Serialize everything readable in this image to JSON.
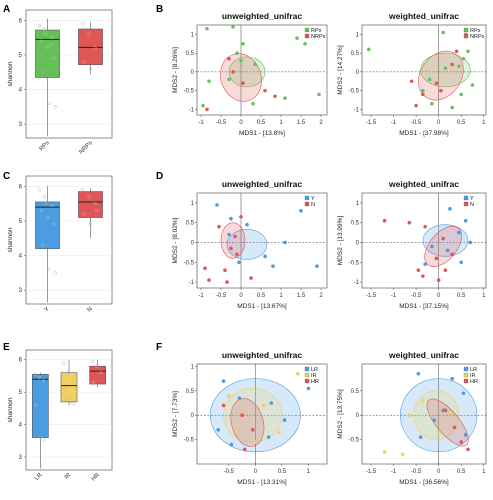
{
  "panel_labels": [
    "A",
    "B",
    "C",
    "D",
    "E",
    "F"
  ],
  "colors": {
    "green": "#66c05a",
    "red": "#e05555",
    "blue": "#4a9de0",
    "yellow": "#f0d060",
    "dark_red": "#d03a3a",
    "gray_point": "#bbbbbb"
  },
  "chart_data": [
    {
      "panel": "A",
      "type": "box",
      "ylabel": "shannon",
      "ylim": [
        2.6,
        6.3
      ],
      "yticks": [
        3,
        4,
        5,
        6
      ],
      "categories": [
        "RPs",
        "NRPs"
      ],
      "boxes": [
        {
          "min": 2.65,
          "q1": 4.35,
          "median": 5.45,
          "q3": 5.72,
          "max": 6.05,
          "color": "#66c05a",
          "points": [
            5.85,
            5.6,
            5.5,
            5.4,
            5.2,
            4.9,
            4.5,
            3.6,
            3.5,
            5.75,
            5.3
          ]
        },
        {
          "min": 4.45,
          "q1": 4.72,
          "median": 5.22,
          "q3": 5.75,
          "max": 5.95,
          "color": "#e05555",
          "points": [
            5.9,
            5.6,
            5.2,
            4.8,
            4.6
          ]
        }
      ]
    },
    {
      "panel": "B1",
      "type": "scatter",
      "title": "unweighted_unifrac",
      "xlabel": "MDS1 - [13.8%]",
      "ylabel": "MDS2 - [8.26%]",
      "xlim": [
        -1.1,
        2.15
      ],
      "ylim": [
        -1.15,
        1.25
      ],
      "xticks": [
        -1.0,
        -0.5,
        0.0,
        0.5,
        1.0,
        1.5,
        2.0
      ],
      "yticks": [
        -1.0,
        -0.5,
        0.0,
        0.5,
        1.0
      ],
      "legend": [
        "RPs",
        "NRPs"
      ],
      "legend_colors": [
        "#66c05a",
        "#e05555"
      ],
      "ellipses": [
        {
          "cx": 0.15,
          "cy": 0.0,
          "rx": 0.45,
          "ry": 0.4,
          "rot": 0,
          "color": "#66c05a"
        },
        {
          "cx": 0.0,
          "cy": -0.15,
          "rx": 0.5,
          "ry": 0.65,
          "rot": -20,
          "color": "#e05555"
        }
      ],
      "points": [
        {
          "x": -0.85,
          "y": 1.15,
          "g": 0
        },
        {
          "x": -0.2,
          "y": 1.2,
          "g": 0
        },
        {
          "x": 0.05,
          "y": 0.75,
          "g": 0
        },
        {
          "x": -0.1,
          "y": 0.5,
          "g": 0
        },
        {
          "x": 0.35,
          "y": 0.2,
          "g": 0
        },
        {
          "x": 0.0,
          "y": 0.3,
          "g": 0
        },
        {
          "x": 1.4,
          "y": 0.9,
          "g": 0
        },
        {
          "x": 1.6,
          "y": 0.75,
          "g": 0
        },
        {
          "x": -0.3,
          "y": -0.2,
          "g": 0
        },
        {
          "x": -0.8,
          "y": -0.25,
          "g": 0
        },
        {
          "x": 1.95,
          "y": -0.6,
          "g": 0
        },
        {
          "x": 1.1,
          "y": -0.7,
          "g": 0
        },
        {
          "x": 0.3,
          "y": -0.85,
          "g": 0
        },
        {
          "x": -0.95,
          "y": -0.9,
          "g": 0
        },
        {
          "x": -0.3,
          "y": 0.35,
          "g": 1
        },
        {
          "x": -0.2,
          "y": 0.0,
          "g": 1
        },
        {
          "x": 0.05,
          "y": -0.3,
          "g": 1
        },
        {
          "x": 0.6,
          "y": -0.5,
          "g": 1
        },
        {
          "x": 0.85,
          "y": -0.65,
          "g": 1
        },
        {
          "x": -0.85,
          "y": -1.0,
          "g": 1
        }
      ]
    },
    {
      "panel": "B2",
      "type": "scatter",
      "title": "weighted_unifrac",
      "xlabel": "MDS1 - [37.98%]",
      "ylabel": "MDS2 - [14.27%]",
      "xlim": [
        -1.7,
        1.05
      ],
      "ylim": [
        -1.15,
        1.25
      ],
      "xticks": [
        -1.5,
        -1.0,
        -0.5,
        0.0,
        0.5,
        1.0
      ],
      "yticks": [
        -1.0,
        -0.5,
        0.0,
        0.5,
        1.0
      ],
      "legend": [
        "RPs",
        "NRPs"
      ],
      "legend_colors": [
        "#66c05a",
        "#e05555"
      ],
      "ellipses": [
        {
          "cx": 0.15,
          "cy": 0.05,
          "rx": 0.55,
          "ry": 0.45,
          "rot": 0,
          "color": "#66c05a"
        },
        {
          "cx": 0.05,
          "cy": -0.1,
          "rx": 0.45,
          "ry": 0.7,
          "rot": 35,
          "color": "#e05555"
        }
      ],
      "points": [
        {
          "x": 0.1,
          "y": 1.05,
          "g": 0
        },
        {
          "x": 0.6,
          "y": 1.0,
          "g": 0
        },
        {
          "x": -1.55,
          "y": 0.6,
          "g": 0
        },
        {
          "x": 0.65,
          "y": 0.55,
          "g": 0
        },
        {
          "x": 0.55,
          "y": 0.35,
          "g": 0
        },
        {
          "x": 0.45,
          "y": 0.15,
          "g": 0
        },
        {
          "x": 0.15,
          "y": 0.1,
          "g": 0
        },
        {
          "x": -0.2,
          "y": -0.2,
          "g": 0
        },
        {
          "x": 0.75,
          "y": -0.35,
          "g": 0
        },
        {
          "x": -0.35,
          "y": -0.5,
          "g": 0
        },
        {
          "x": -0.15,
          "y": -0.85,
          "g": 0
        },
        {
          "x": 0.3,
          "y": -0.95,
          "g": 0
        },
        {
          "x": 0.5,
          "y": -0.6,
          "g": 0
        },
        {
          "x": 0.3,
          "y": 0.2,
          "g": 1
        },
        {
          "x": -0.05,
          "y": -0.3,
          "g": 1
        },
        {
          "x": -0.35,
          "y": -0.6,
          "g": 1
        },
        {
          "x": -0.5,
          "y": -0.9,
          "g": 1
        },
        {
          "x": 0.05,
          "y": -0.5,
          "g": 1
        },
        {
          "x": 0.4,
          "y": 0.55,
          "g": 1
        },
        {
          "x": -0.6,
          "y": -0.25,
          "g": 1
        }
      ]
    },
    {
      "panel": "C",
      "type": "box",
      "ylabel": "shannon",
      "ylim": [
        2.6,
        6.3
      ],
      "yticks": [
        3,
        4,
        5,
        6
      ],
      "categories": [
        "Y",
        "N"
      ],
      "boxes": [
        {
          "min": 2.65,
          "q1": 4.2,
          "median": 5.4,
          "q3": 5.55,
          "max": 6.0,
          "color": "#4a9de0",
          "points": [
            5.9,
            5.5,
            5.45,
            5.3,
            5.1,
            4.9,
            4.3,
            3.6,
            3.5,
            5.7
          ]
        },
        {
          "min": 4.5,
          "q1": 5.1,
          "median": 5.55,
          "q3": 5.85,
          "max": 5.95,
          "color": "#e05555",
          "points": [
            5.9,
            5.7,
            5.5,
            5.2,
            4.9,
            5.3
          ]
        }
      ]
    },
    {
      "panel": "D1",
      "type": "scatter",
      "title": "unweighted_unifrac",
      "xlabel": "MDS1 - [13.67%]",
      "ylabel": "MDS2 - [8.02%]",
      "xlim": [
        -1.1,
        2.15
      ],
      "ylim": [
        -1.15,
        1.25
      ],
      "xticks": [
        -1.0,
        -0.5,
        0.0,
        0.5,
        1.0,
        1.5,
        2.0
      ],
      "yticks": [
        -1.0,
        -0.5,
        0.0,
        0.5,
        1.0
      ],
      "legend": [
        "Y",
        "N"
      ],
      "legend_colors": [
        "#4a9de0",
        "#e05555"
      ],
      "ellipses": [
        {
          "cx": 0.15,
          "cy": -0.05,
          "rx": 0.5,
          "ry": 0.38,
          "rot": 0,
          "color": "#4a9de0"
        },
        {
          "cx": -0.2,
          "cy": 0.05,
          "rx": 0.3,
          "ry": 0.45,
          "rot": 0,
          "color": "#e05555"
        }
      ],
      "points": [
        {
          "x": -0.6,
          "y": 0.95,
          "g": 0
        },
        {
          "x": -0.25,
          "y": 0.6,
          "g": 0
        },
        {
          "x": 0.15,
          "y": 0.45,
          "g": 0
        },
        {
          "x": 1.5,
          "y": 0.8,
          "g": 0
        },
        {
          "x": 1.1,
          "y": 0.0,
          "g": 0
        },
        {
          "x": 0.6,
          "y": -0.35,
          "g": 0
        },
        {
          "x": 0.8,
          "y": -0.6,
          "g": 0
        },
        {
          "x": 1.9,
          "y": -0.6,
          "g": 0
        },
        {
          "x": -0.05,
          "y": -0.5,
          "g": 0
        },
        {
          "x": -0.3,
          "y": 0.2,
          "g": 0
        },
        {
          "x": -0.55,
          "y": 0.4,
          "g": 1
        },
        {
          "x": -0.15,
          "y": 0.15,
          "g": 1
        },
        {
          "x": -0.25,
          "y": -0.15,
          "g": 1
        },
        {
          "x": -0.1,
          "y": -0.3,
          "g": 1
        },
        {
          "x": -0.4,
          "y": -0.7,
          "g": 1
        },
        {
          "x": -0.9,
          "y": -0.65,
          "g": 1
        },
        {
          "x": -0.8,
          "y": -0.95,
          "g": 1
        },
        {
          "x": 0.25,
          "y": -0.9,
          "g": 1
        },
        {
          "x": -0.35,
          "y": -1.0,
          "g": 1
        },
        {
          "x": 0.0,
          "y": 0.65,
          "g": 1
        }
      ]
    },
    {
      "panel": "D2",
      "type": "scatter",
      "title": "weighted_unifrac",
      "xlabel": "MDS1 - [37.15%]",
      "ylabel": "MDS2 - [13.99%]",
      "xlim": [
        -1.7,
        1.05
      ],
      "ylim": [
        -1.15,
        1.25
      ],
      "xticks": [
        -1.5,
        -1.0,
        -0.5,
        0.0,
        0.5,
        1.0
      ],
      "yticks": [
        -1.0,
        -0.5,
        0.0,
        0.5,
        1.0
      ],
      "legend": [
        "Y",
        "N"
      ],
      "legend_colors": [
        "#4a9de0",
        "#e05555"
      ],
      "ellipses": [
        {
          "cx": 0.15,
          "cy": 0.05,
          "rx": 0.5,
          "ry": 0.4,
          "rot": 0,
          "color": "#4a9de0"
        },
        {
          "cx": 0.1,
          "cy": -0.1,
          "rx": 0.3,
          "ry": 0.6,
          "rot": 40,
          "color": "#e05555"
        }
      ],
      "points": [
        {
          "x": 0.25,
          "y": 0.85,
          "g": 0
        },
        {
          "x": 0.6,
          "y": 0.55,
          "g": 0
        },
        {
          "x": 0.45,
          "y": 0.25,
          "g": 0
        },
        {
          "x": 0.7,
          "y": 0.0,
          "g": 0
        },
        {
          "x": -0.15,
          "y": -0.1,
          "g": 0
        },
        {
          "x": 0.5,
          "y": -0.5,
          "g": 0
        },
        {
          "x": -0.3,
          "y": -0.55,
          "g": 0
        },
        {
          "x": 0.2,
          "y": -0.2,
          "g": 0
        },
        {
          "x": -1.2,
          "y": 0.55,
          "g": 1
        },
        {
          "x": -0.65,
          "y": 0.5,
          "g": 1
        },
        {
          "x": -0.3,
          "y": 0.4,
          "g": 1
        },
        {
          "x": 0.1,
          "y": 0.1,
          "g": 1
        },
        {
          "x": -0.05,
          "y": -0.4,
          "g": 1
        },
        {
          "x": -0.45,
          "y": -0.7,
          "g": 1
        },
        {
          "x": -0.35,
          "y": -0.85,
          "g": 1
        },
        {
          "x": 0.15,
          "y": -0.7,
          "g": 1
        },
        {
          "x": 0.3,
          "y": -0.3,
          "g": 1
        },
        {
          "x": 0.0,
          "y": -0.95,
          "g": 1
        }
      ]
    },
    {
      "panel": "E",
      "type": "box",
      "ylabel": "shannon",
      "ylim": [
        2.6,
        6.3
      ],
      "yticks": [
        3,
        4,
        5,
        6
      ],
      "categories": [
        "LR",
        "IR",
        "HR"
      ],
      "boxes": [
        {
          "min": 2.65,
          "q1": 3.6,
          "median": 5.4,
          "q3": 5.55,
          "max": 5.6,
          "color": "#4a9de0",
          "points": [
            5.55,
            5.45,
            5.35,
            4.6,
            3.6,
            3.5
          ]
        },
        {
          "min": 4.6,
          "q1": 4.7,
          "median": 5.2,
          "q3": 5.6,
          "max": 6.0,
          "color": "#f0d060",
          "points": [
            5.9,
            5.6,
            5.3,
            5.1,
            4.8,
            4.65
          ]
        },
        {
          "min": 5.15,
          "q1": 5.25,
          "median": 5.65,
          "q3": 5.8,
          "max": 6.0,
          "color": "#e05555",
          "points": [
            5.95,
            5.8,
            5.6,
            5.3
          ]
        }
      ]
    },
    {
      "panel": "F1",
      "type": "scatter",
      "title": "unweighted_unifrac",
      "xlabel": "MDS1 - [13.31%]",
      "ylabel": "MDS2 - [7.73%]",
      "xlim": [
        -1.1,
        1.35
      ],
      "ylim": [
        -1.0,
        1.05
      ],
      "xticks": [
        -0.5,
        0.0,
        0.5,
        1.0
      ],
      "yticks": [
        -0.5,
        0.0,
        0.5,
        1.0
      ],
      "legend": [
        "LR",
        "IR",
        "HR"
      ],
      "legend_colors": [
        "#4a9de0",
        "#f0d060",
        "#e05555"
      ],
      "ellipses": [
        {
          "cx": 0.0,
          "cy": 0.0,
          "rx": 0.85,
          "ry": 0.75,
          "rot": 0,
          "color": "#4a9de0"
        },
        {
          "cx": -0.05,
          "cy": 0.0,
          "rx": 0.55,
          "ry": 0.55,
          "rot": 0,
          "color": "#f0d060"
        },
        {
          "cx": -0.15,
          "cy": -0.15,
          "rx": 0.3,
          "ry": 0.5,
          "rot": -15,
          "color": "#e05555"
        }
      ],
      "points": [
        {
          "x": -0.6,
          "y": 0.7,
          "g": 0
        },
        {
          "x": -0.3,
          "y": 0.35,
          "g": 0
        },
        {
          "x": 0.3,
          "y": 0.25,
          "g": 0
        },
        {
          "x": 0.55,
          "y": -0.1,
          "g": 0
        },
        {
          "x": -0.7,
          "y": -0.3,
          "g": 0
        },
        {
          "x": -0.45,
          "y": -0.6,
          "g": 0
        },
        {
          "x": 0.25,
          "y": -0.45,
          "g": 0
        },
        {
          "x": 1.0,
          "y": 0.55,
          "g": 0
        },
        {
          "x": -0.5,
          "y": 0.4,
          "g": 1
        },
        {
          "x": -0.2,
          "y": 0.1,
          "g": 1
        },
        {
          "x": 0.15,
          "y": 0.2,
          "g": 1
        },
        {
          "x": 0.45,
          "y": -0.35,
          "g": 1
        },
        {
          "x": -0.35,
          "y": -0.25,
          "g": 1
        },
        {
          "x": 0.8,
          "y": 0.85,
          "g": 1
        },
        {
          "x": 0.0,
          "y": -0.55,
          "g": 1
        },
        {
          "x": -0.25,
          "y": 0.0,
          "g": 2
        },
        {
          "x": -0.05,
          "y": -0.3,
          "g": 2
        },
        {
          "x": -0.2,
          "y": -0.7,
          "g": 2
        },
        {
          "x": -0.6,
          "y": 0.2,
          "g": 2
        }
      ]
    },
    {
      "panel": "F2",
      "type": "scatter",
      "title": "weighted_unifrac",
      "xlabel": "MDS1 - [36.56%]",
      "ylabel": "MDS2 - [13.75%]",
      "xlim": [
        -1.7,
        1.05
      ],
      "ylim": [
        -1.0,
        1.05
      ],
      "xticks": [
        -1.5,
        -1.0,
        -0.5,
        0.0,
        0.5,
        1.0
      ],
      "yticks": [
        -0.5,
        0.0,
        0.5
      ],
      "legend": [
        "LR",
        "IR",
        "HR"
      ],
      "legend_colors": [
        "#4a9de0",
        "#f0d060",
        "#e05555"
      ],
      "ellipses": [
        {
          "cx": 0.0,
          "cy": 0.0,
          "rx": 0.85,
          "ry": 0.75,
          "rot": 0,
          "color": "#4a9de0"
        },
        {
          "cx": -0.05,
          "cy": 0.0,
          "rx": 0.5,
          "ry": 0.5,
          "rot": 0,
          "color": "#f0d060"
        },
        {
          "cx": 0.2,
          "cy": -0.15,
          "rx": 0.25,
          "ry": 0.6,
          "rot": -40,
          "color": "#e05555"
        }
      ],
      "points": [
        {
          "x": -0.45,
          "y": 0.85,
          "g": 0
        },
        {
          "x": 0.3,
          "y": 0.75,
          "g": 0
        },
        {
          "x": 0.55,
          "y": 0.45,
          "g": 0
        },
        {
          "x": 0.1,
          "y": 0.1,
          "g": 0
        },
        {
          "x": -0.1,
          "y": -0.1,
          "g": 0
        },
        {
          "x": 0.6,
          "y": -0.4,
          "g": 0
        },
        {
          "x": -0.4,
          "y": -0.45,
          "g": 0
        },
        {
          "x": -1.2,
          "y": -0.75,
          "g": 1
        },
        {
          "x": -0.8,
          "y": -0.8,
          "g": 1
        },
        {
          "x": -0.35,
          "y": 0.3,
          "g": 1
        },
        {
          "x": 0.0,
          "y": -0.35,
          "g": 1
        },
        {
          "x": 0.25,
          "y": 0.05,
          "g": 1
        },
        {
          "x": -0.65,
          "y": 0.0,
          "g": 1
        },
        {
          "x": 0.15,
          "y": 0.1,
          "g": 2
        },
        {
          "x": 0.35,
          "y": -0.25,
          "g": 2
        },
        {
          "x": 0.5,
          "y": -0.55,
          "g": 2
        },
        {
          "x": 0.65,
          "y": -0.7,
          "g": 2
        }
      ]
    }
  ]
}
